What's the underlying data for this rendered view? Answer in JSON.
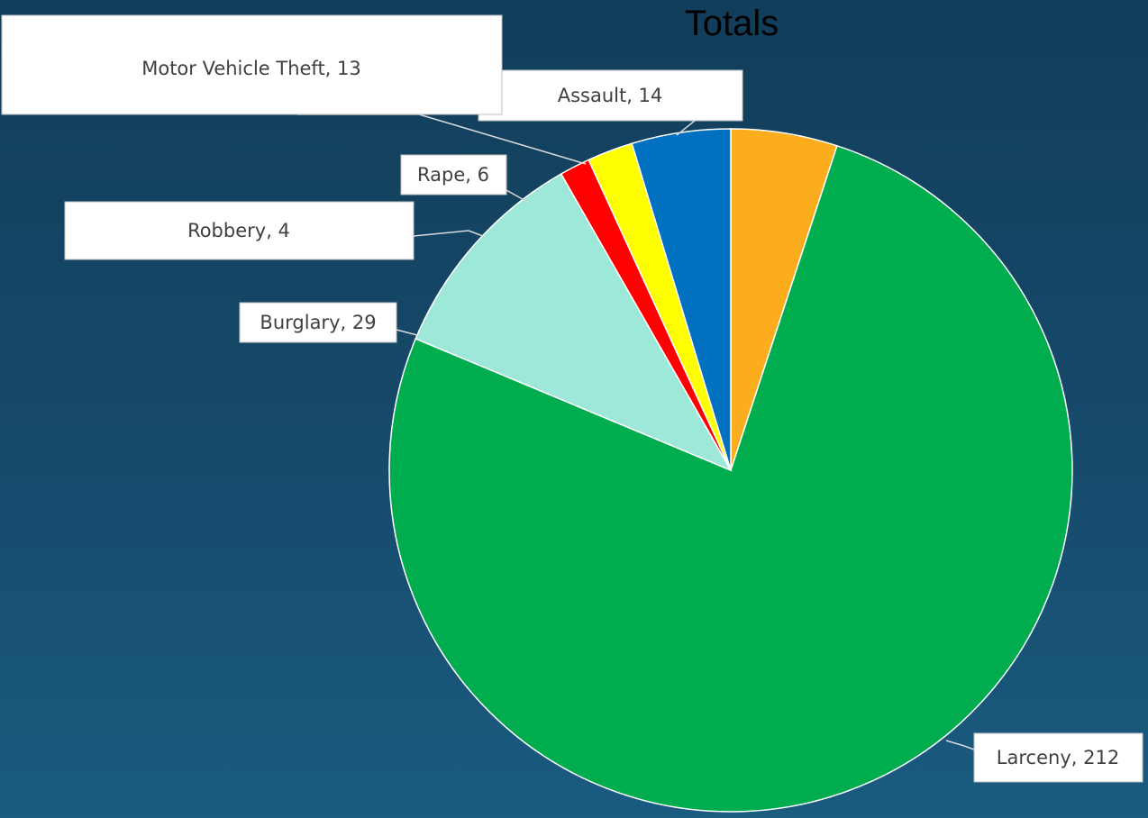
{
  "chart_data": {
    "type": "pie",
    "title": "Totals",
    "slices": [
      {
        "label": "Assault",
        "value": 14,
        "color": "#fbad1e"
      },
      {
        "label": "Larceny",
        "value": 212,
        "color": "#00ad4e"
      },
      {
        "label": "Burglary",
        "value": 29,
        "color": "#9de8d8"
      },
      {
        "label": "Robbery",
        "value": 4,
        "color": "#ff0000"
      },
      {
        "label": "Rape",
        "value": 6,
        "color": "#ffff00"
      },
      {
        "label": "Motor Vehicle Theft",
        "value": 13,
        "color": "#0070c0"
      }
    ],
    "data_labels": [
      "Assault, 14",
      "Larceny, 212",
      "Burglary, 29",
      "Robbery, 4",
      "Rape, 6",
      "Motor Vehicle Theft, 13"
    ],
    "legend": "none"
  }
}
